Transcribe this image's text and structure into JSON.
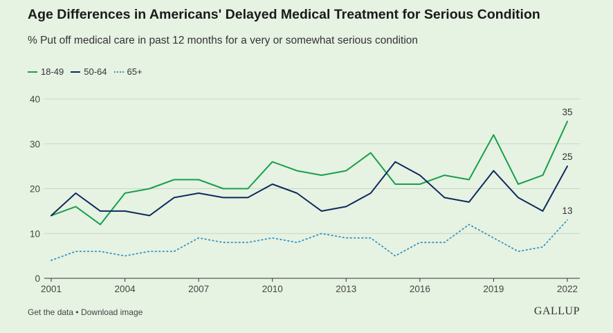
{
  "header": {
    "title": "Age Differences in Americans' Delayed Medical Treatment for Serious Condition",
    "subtitle": "% Put off medical care in past 12 months for a very or somewhat serious condition"
  },
  "footer": {
    "get_data": "Get the data",
    "separator": "•",
    "download_image": "Download image",
    "brand": "GALLUP"
  },
  "colors": {
    "s18_49": "#16a04a",
    "s50_64": "#0e2a5c",
    "s65": "#2f93c4",
    "grid": "#c9d6c6",
    "background": "#e6f2e2"
  },
  "chart_data": {
    "type": "line",
    "x": [
      2001,
      2002,
      2003,
      2004,
      2005,
      2006,
      2007,
      2008,
      2009,
      2010,
      2011,
      2012,
      2013,
      2014,
      2015,
      2016,
      2017,
      2018,
      2019,
      2020,
      2021,
      2022
    ],
    "x_tick_labels": [
      "2001",
      "2004",
      "2007",
      "2010",
      "2013",
      "2016",
      "2019",
      "2022"
    ],
    "y_tick_labels": [
      "0",
      "10",
      "20",
      "30",
      "40"
    ],
    "ylim": [
      0,
      40
    ],
    "grid": true,
    "legend_position": "top-left",
    "series": [
      {
        "name": "18-49",
        "style": "solid",
        "values": [
          14,
          16,
          12,
          19,
          20,
          22,
          22,
          20,
          20,
          26,
          24,
          23,
          24,
          28,
          21,
          21,
          23,
          22,
          32,
          21,
          23,
          35
        ],
        "end_label": "35"
      },
      {
        "name": "50-64",
        "style": "solid",
        "values": [
          14,
          19,
          15,
          15,
          14,
          18,
          19,
          18,
          18,
          21,
          19,
          15,
          16,
          19,
          26,
          23,
          18,
          17,
          24,
          18,
          15,
          25
        ],
        "end_label": "25"
      },
      {
        "name": "65+",
        "style": "dotted",
        "values": [
          4,
          6,
          6,
          5,
          6,
          6,
          9,
          8,
          8,
          9,
          8,
          10,
          9,
          9,
          5,
          8,
          8,
          12,
          9,
          6,
          7,
          13
        ],
        "end_label": "13"
      }
    ]
  }
}
